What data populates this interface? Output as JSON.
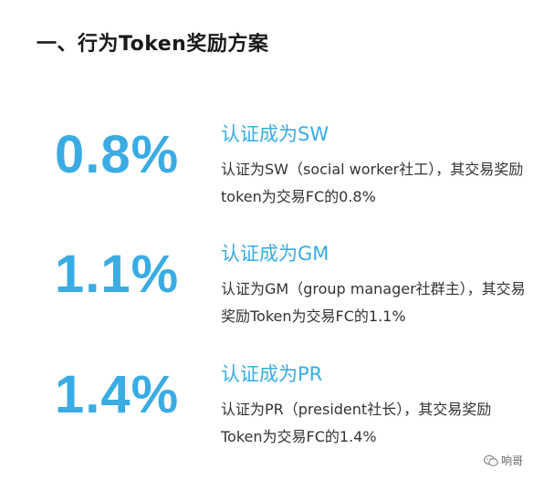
{
  "title": "一、行为Token奖励方案",
  "tiers": [
    {
      "percent": "0.8%",
      "heading": "认证成为SW",
      "description": "认证为SW（social worker社工），其交易奖励token为交易FC的0.8%"
    },
    {
      "percent": "1.1%",
      "heading": "认证成为GM",
      "description": "认证为GM（group manager社群主），其交易奖励Token为交易FC的1.1%"
    },
    {
      "percent": "1.4%",
      "heading": "认证成为PR",
      "description": "认证为PR（president社长），其交易奖励Token为交易FC的1.4%"
    }
  ],
  "watermark": {
    "icon": "wechat-icon",
    "text": "响哥"
  },
  "colors": {
    "accent": "#3aace3",
    "title": "#1a1a1a",
    "body_text": "#333333"
  }
}
